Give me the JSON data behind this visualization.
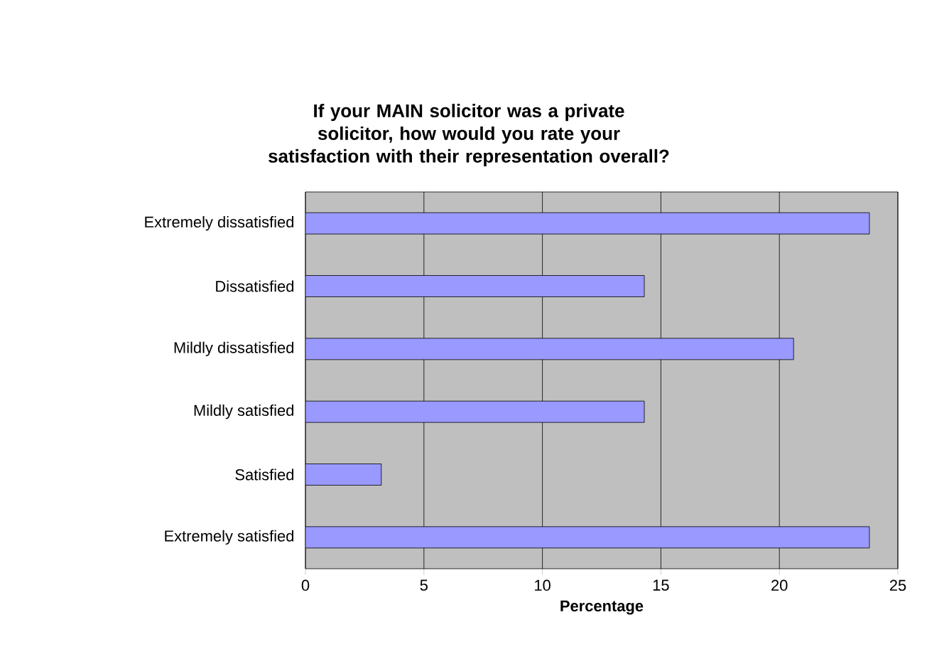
{
  "chart_data": {
    "type": "bar",
    "orientation": "horizontal",
    "title": "If your MAIN solicitor was a private solicitor, how would you rate your satisfaction with their representation overall?",
    "xlabel": "Percentage",
    "categories": [
      "Extremely dissatisfied",
      "Dissatisfied",
      "Mildly dissatisfied",
      "Mildly satisfied",
      "Satisfied",
      "Extremely satisfied"
    ],
    "values": [
      23.8,
      14.3,
      20.6,
      14.3,
      3.2,
      23.8
    ],
    "color": "#9999ff",
    "xlim": [
      0,
      25
    ],
    "xticks": [
      0,
      5,
      10,
      15,
      20,
      25
    ],
    "grid": "x"
  }
}
